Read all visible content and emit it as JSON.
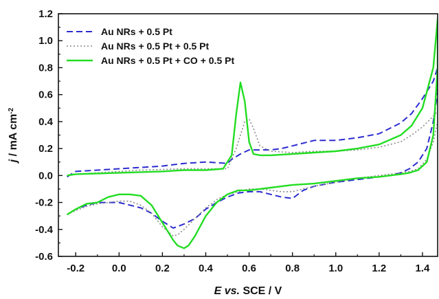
{
  "chart_data": {
    "type": "line",
    "title": "",
    "xlabel": {
      "italic": "E vs.",
      "rest": " SCE / V"
    },
    "ylabel": {
      "italic": "j",
      "rest": " / mA cm",
      "sup": "-2"
    },
    "xlim": [
      -0.28,
      1.47
    ],
    "ylim": [
      -0.6,
      1.2
    ],
    "xticks": [
      -0.2,
      0.0,
      0.2,
      0.4,
      0.6,
      0.8,
      1.0,
      1.2,
      1.4
    ],
    "xtick_labels": [
      "-0.2",
      "0.0",
      "0.2",
      "0.4",
      "0.6",
      "0.8",
      "1.0",
      "1.2",
      "1.4"
    ],
    "yticks": [
      -0.6,
      -0.4,
      -0.2,
      0.0,
      0.2,
      0.4,
      0.6,
      0.8,
      1.0,
      1.2
    ],
    "ytick_labels": [
      "-0.6",
      "-0.4",
      "-0.2",
      "0.0",
      "0.2",
      "0.4",
      "0.6",
      "0.8",
      "1.0",
      "1.2"
    ],
    "grid": false,
    "legend_position": "top-left",
    "series": [
      {
        "name": "Au NRs + 0.5 Pt",
        "color": "#2b2bd0",
        "style": "dashed",
        "x": [
          -0.24,
          -0.2,
          -0.1,
          0.0,
          0.1,
          0.2,
          0.3,
          0.4,
          0.5,
          0.52,
          0.56,
          0.6,
          0.65,
          0.7,
          0.75,
          0.8,
          0.9,
          1.0,
          1.1,
          1.2,
          1.3,
          1.35,
          1.4,
          1.45,
          1.47,
          1.47,
          1.45,
          1.42,
          1.38,
          1.34,
          1.3,
          1.25,
          1.2,
          1.1,
          1.0,
          0.9,
          0.85,
          0.8,
          0.75,
          0.7,
          0.65,
          0.6,
          0.55,
          0.5,
          0.45,
          0.4,
          0.35,
          0.3,
          0.25,
          0.2,
          0.15,
          0.1,
          0.0,
          -0.1,
          -0.15,
          -0.2,
          -0.24
        ],
        "y": [
          -0.01,
          0.03,
          0.04,
          0.05,
          0.06,
          0.07,
          0.09,
          0.1,
          0.09,
          0.12,
          0.16,
          0.19,
          0.19,
          0.19,
          0.2,
          0.22,
          0.26,
          0.26,
          0.28,
          0.31,
          0.39,
          0.46,
          0.57,
          0.7,
          0.8,
          0.62,
          0.4,
          0.2,
          0.1,
          0.05,
          0.02,
          0.0,
          -0.01,
          -0.03,
          -0.05,
          -0.08,
          -0.11,
          -0.17,
          -0.16,
          -0.14,
          -0.12,
          -0.12,
          -0.13,
          -0.16,
          -0.2,
          -0.25,
          -0.32,
          -0.36,
          -0.39,
          -0.34,
          -0.28,
          -0.24,
          -0.2,
          -0.2,
          -0.22,
          -0.25,
          -0.29
        ]
      },
      {
        "name": "Au NRs + 0.5 Pt + 0.5 Pt",
        "color": "#888888",
        "style": "dotted",
        "x": [
          -0.24,
          -0.2,
          -0.1,
          0.0,
          0.1,
          0.2,
          0.3,
          0.4,
          0.5,
          0.54,
          0.58,
          0.6,
          0.62,
          0.65,
          0.7,
          0.8,
          0.9,
          1.0,
          1.1,
          1.2,
          1.3,
          1.35,
          1.4,
          1.45,
          1.47,
          1.47,
          1.45,
          1.42,
          1.38,
          1.34,
          1.3,
          1.25,
          1.2,
          1.1,
          1.0,
          0.9,
          0.85,
          0.8,
          0.75,
          0.7,
          0.65,
          0.6,
          0.55,
          0.5,
          0.45,
          0.4,
          0.35,
          0.3,
          0.27,
          0.25,
          0.2,
          0.15,
          0.1,
          0.05,
          0.0,
          -0.1,
          -0.15,
          -0.2,
          -0.24
        ],
        "y": [
          0.0,
          0.01,
          0.02,
          0.03,
          0.04,
          0.045,
          0.05,
          0.05,
          0.05,
          0.2,
          0.4,
          0.42,
          0.35,
          0.22,
          0.18,
          0.17,
          0.18,
          0.18,
          0.19,
          0.21,
          0.25,
          0.3,
          0.36,
          0.44,
          0.48,
          0.4,
          0.25,
          0.12,
          0.05,
          0.03,
          0.02,
          0.01,
          0.0,
          -0.02,
          -0.05,
          -0.08,
          -0.1,
          -0.12,
          -0.12,
          -0.11,
          -0.1,
          -0.1,
          -0.12,
          -0.14,
          -0.18,
          -0.24,
          -0.32,
          -0.4,
          -0.44,
          -0.45,
          -0.38,
          -0.28,
          -0.22,
          -0.19,
          -0.19,
          -0.21,
          -0.23,
          -0.26,
          -0.29
        ]
      },
      {
        "name": "Au NRs + 0.5 Pt + CO + 0.5 Pt",
        "color": "#22dd22",
        "style": "solid",
        "x": [
          -0.24,
          -0.2,
          -0.1,
          0.0,
          0.1,
          0.2,
          0.3,
          0.4,
          0.48,
          0.52,
          0.54,
          0.56,
          0.58,
          0.6,
          0.62,
          0.65,
          0.7,
          0.8,
          0.9,
          1.0,
          1.1,
          1.2,
          1.3,
          1.35,
          1.4,
          1.45,
          1.47,
          1.47,
          1.45,
          1.42,
          1.38,
          1.34,
          1.3,
          1.25,
          1.2,
          1.1,
          1.0,
          0.9,
          0.8,
          0.7,
          0.6,
          0.55,
          0.5,
          0.45,
          0.4,
          0.35,
          0.32,
          0.3,
          0.27,
          0.25,
          0.2,
          0.15,
          0.1,
          0.05,
          0.0,
          -0.05,
          -0.1,
          -0.15,
          -0.2,
          -0.24
        ],
        "y": [
          0.0,
          0.01,
          0.015,
          0.02,
          0.025,
          0.03,
          0.04,
          0.04,
          0.05,
          0.15,
          0.45,
          0.69,
          0.55,
          0.25,
          0.16,
          0.15,
          0.15,
          0.16,
          0.17,
          0.18,
          0.2,
          0.23,
          0.3,
          0.37,
          0.5,
          0.8,
          1.16,
          0.8,
          0.3,
          0.1,
          0.04,
          0.02,
          0.01,
          0.0,
          -0.01,
          -0.02,
          -0.04,
          -0.06,
          -0.07,
          -0.09,
          -0.11,
          -0.11,
          -0.14,
          -0.2,
          -0.3,
          -0.45,
          -0.52,
          -0.54,
          -0.52,
          -0.48,
          -0.35,
          -0.22,
          -0.15,
          -0.14,
          -0.14,
          -0.16,
          -0.2,
          -0.21,
          -0.25,
          -0.29
        ]
      }
    ]
  }
}
